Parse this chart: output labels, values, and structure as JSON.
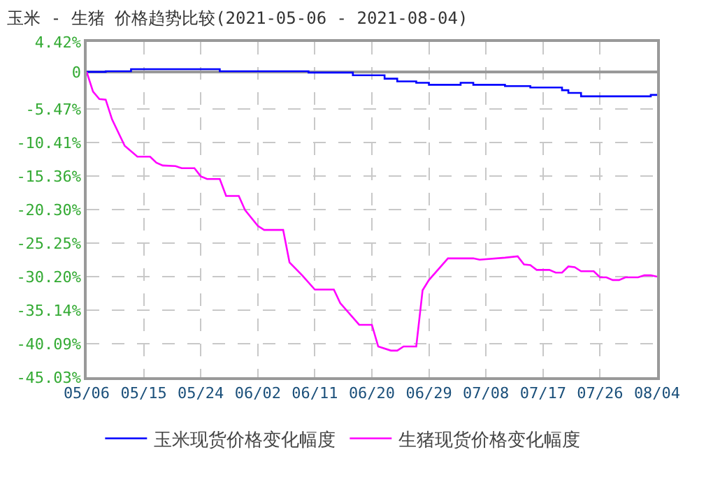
{
  "chart_data": {
    "type": "line",
    "title": "玉米 - 生猪 价格趋势比较(2021-05-06 - 2021-08-04)",
    "xlim": [
      "2021-05-06",
      "2021-08-04"
    ],
    "xticks": [
      {
        "value": "2021-05-06",
        "label": "05/06"
      },
      {
        "value": "2021-05-15",
        "label": "05/15"
      },
      {
        "value": "2021-05-24",
        "label": "05/24"
      },
      {
        "value": "2021-06-02",
        "label": "06/02"
      },
      {
        "value": "2021-06-11",
        "label": "06/11"
      },
      {
        "value": "2021-06-20",
        "label": "06/20"
      },
      {
        "value": "2021-06-29",
        "label": "06/29"
      },
      {
        "value": "2021-07-08",
        "label": "07/08"
      },
      {
        "value": "2021-07-17",
        "label": "07/17"
      },
      {
        "value": "2021-07-26",
        "label": "07/26"
      },
      {
        "value": "2021-08-04",
        "label": "08/04"
      }
    ],
    "ylim": [
      -45.03,
      4.42
    ],
    "yticks": [
      {
        "value": 4.42,
        "label": "4.42%"
      },
      0,
      {
        "value": -5.47,
        "label": "-5.47%"
      },
      {
        "value": -10.41,
        "label": "-10.41%"
      },
      {
        "value": -15.36,
        "label": "-15.36%"
      },
      {
        "value": -20.3,
        "label": "-20.30%"
      },
      {
        "value": -25.25,
        "label": "-25.25%"
      },
      {
        "value": -30.2,
        "label": "-30.20%"
      },
      {
        "value": -35.14,
        "label": "-35.14%"
      },
      {
        "value": -40.09,
        "label": "-40.09%"
      },
      {
        "value": -45.03,
        "label": "-45.03%"
      }
    ],
    "grid": true,
    "legend": "bottom",
    "line_style": "solid",
    "marker": "none",
    "series": [
      {
        "name": "玉米现货价格变化幅度",
        "color": "#0000ff",
        "type": "step",
        "x": [
          "2021-05-06",
          "2021-05-09",
          "2021-05-13",
          "2021-05-27",
          "2021-06-10",
          "2021-06-17",
          "2021-06-22",
          "2021-06-24",
          "2021-06-27",
          "2021-06-29",
          "2021-07-04",
          "2021-07-06",
          "2021-07-11",
          "2021-07-15",
          "2021-07-20",
          "2021-07-21",
          "2021-07-23",
          "2021-08-03",
          "2021-08-04"
        ],
        "values": [
          0,
          0.1,
          0.4,
          0.1,
          -0.1,
          -0.5,
          -1.0,
          -1.4,
          -1.6,
          -1.9,
          -1.6,
          -1.9,
          -2.1,
          -2.3,
          -2.7,
          -3.1,
          -3.6,
          -3.4,
          -3.4
        ]
      },
      {
        "name": "生猪现货价格变化幅度",
        "color": "#ff00ff",
        "x": [
          "2021-05-06",
          "2021-05-07",
          "2021-05-08",
          "2021-05-09",
          "2021-05-10",
          "2021-05-12",
          "2021-05-14",
          "2021-05-16",
          "2021-05-17",
          "2021-05-18",
          "2021-05-20",
          "2021-05-21",
          "2021-05-23",
          "2021-05-24",
          "2021-05-25",
          "2021-05-27",
          "2021-05-28",
          "2021-05-30",
          "2021-05-31",
          "2021-06-02",
          "2021-06-03",
          "2021-06-06",
          "2021-06-07",
          "2021-06-09",
          "2021-06-11",
          "2021-06-14",
          "2021-06-15",
          "2021-06-18",
          "2021-06-20",
          "2021-06-21",
          "2021-06-23",
          "2021-06-24",
          "2021-06-25",
          "2021-06-27",
          "2021-06-28",
          "2021-06-29",
          "2021-07-02",
          "2021-07-06",
          "2021-07-07",
          "2021-07-11",
          "2021-07-13",
          "2021-07-14",
          "2021-07-15",
          "2021-07-16",
          "2021-07-18",
          "2021-07-19",
          "2021-07-20",
          "2021-07-21",
          "2021-07-22",
          "2021-07-23",
          "2021-07-25",
          "2021-07-26",
          "2021-07-27",
          "2021-07-28",
          "2021-07-29",
          "2021-07-30",
          "2021-08-01",
          "2021-08-02",
          "2021-08-03",
          "2021-08-04"
        ],
        "values": [
          0,
          -2.9,
          -4.0,
          -4.1,
          -7.0,
          -10.9,
          -12.5,
          -12.5,
          -13.4,
          -13.8,
          -13.9,
          -14.2,
          -14.2,
          -15.4,
          -15.8,
          -15.8,
          -18.3,
          -18.3,
          -20.4,
          -22.7,
          -23.3,
          -23.3,
          -28.1,
          -30.0,
          -32.1,
          -32.1,
          -34.1,
          -37.3,
          -37.3,
          -40.5,
          -41.1,
          -41.1,
          -40.5,
          -40.5,
          -32.2,
          -30.7,
          -27.5,
          -27.5,
          -27.7,
          -27.4,
          -27.2,
          -28.4,
          -28.5,
          -29.2,
          -29.2,
          -29.6,
          -29.6,
          -28.7,
          -28.8,
          -29.4,
          -29.4,
          -30.3,
          -30.3,
          -30.7,
          -30.7,
          -30.3,
          -30.3,
          -30.0,
          -30.0,
          -30.2
        ]
      }
    ]
  }
}
